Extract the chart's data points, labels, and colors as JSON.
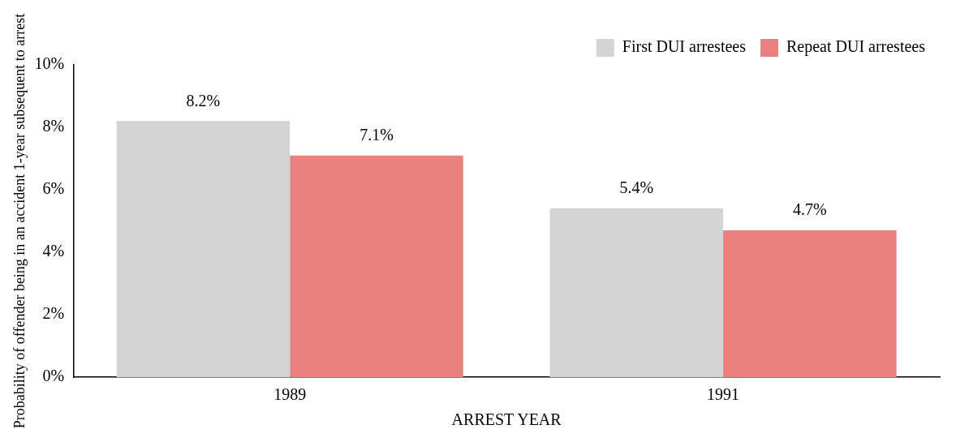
{
  "chart_data": {
    "type": "bar",
    "xlabel": "ARREST YEAR",
    "ylabel": "Probability of offender being in an accident 1-year subsequent to arrest",
    "categories": [
      "1989",
      "1991"
    ],
    "series": [
      {
        "name": "First DUI arrestees",
        "color": "#d4d4d4",
        "values": [
          8.2,
          5.4
        ],
        "value_labels": [
          "8.2%",
          "5.4%"
        ]
      },
      {
        "name": "Repeat DUI arrestees",
        "color": "#e88080",
        "values": [
          7.1,
          4.7
        ],
        "value_labels": [
          "7.1%",
          "4.7%"
        ]
      }
    ],
    "ylim": [
      0,
      10
    ],
    "yticks": [
      {
        "value": 0,
        "label": "0%"
      },
      {
        "value": 2,
        "label": "2%"
      },
      {
        "value": 4,
        "label": "4%"
      },
      {
        "value": 6,
        "label": "6%"
      },
      {
        "value": 8,
        "label": "8%"
      },
      {
        "value": 10,
        "label": "10%"
      }
    ],
    "grid": false,
    "legend": "top right"
  }
}
